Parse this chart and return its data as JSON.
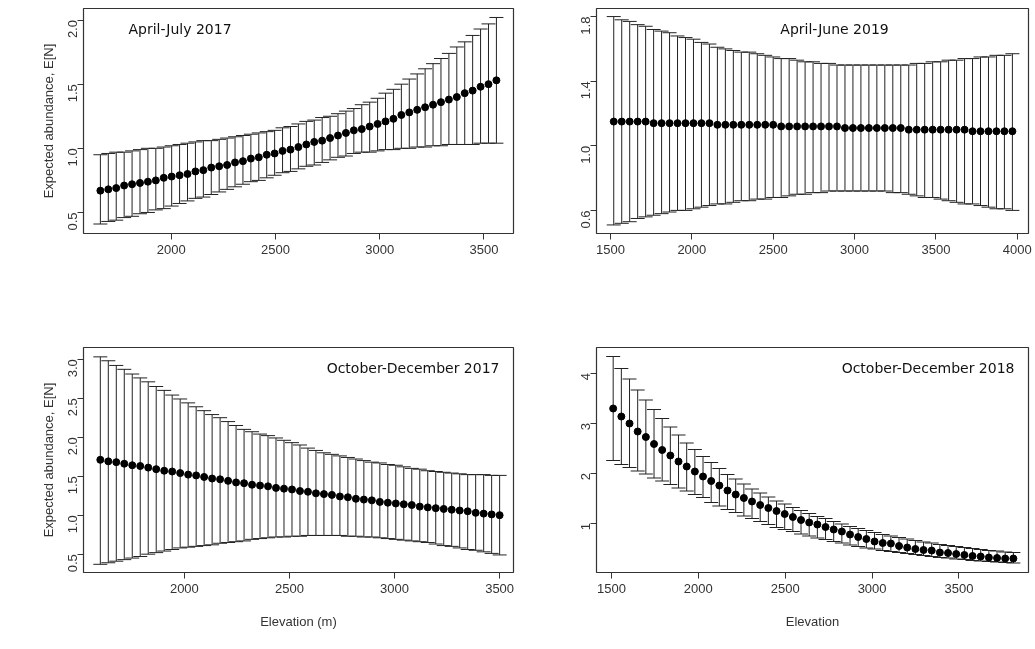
{
  "chart_data": [
    {
      "type": "scatter",
      "ylabel": "Expected abundance, E[N]",
      "annotations": [
        "April-July 2017"
      ],
      "marker": "circle",
      "grid": false,
      "color": "#000000",
      "tick_labels": "xy",
      "xlim": [
        1579,
        3642
      ],
      "ylim": [
        0.336,
        2.09
      ],
      "xticks": [
        2000,
        2500,
        3000,
        3500
      ],
      "yticks": [
        0.5,
        {
          "value": 1,
          "label": "1.0"
        },
        1.5,
        {
          "value": 2,
          "label": "2.0"
        }
      ],
      "x": [
        1660,
        1698,
        1736,
        1774,
        1812,
        1850,
        1888,
        1926,
        1964,
        2002,
        2040,
        2078,
        2116,
        2154,
        2192,
        2230,
        2268,
        2306,
        2344,
        2382,
        2420,
        2458,
        2496,
        2534,
        2572,
        2610,
        2648,
        2686,
        2724,
        2762,
        2800,
        2838,
        2876,
        2914,
        2952,
        2990,
        3028,
        3066,
        3104,
        3142,
        3180,
        3218,
        3256,
        3294,
        3332,
        3370,
        3408,
        3446,
        3484,
        3522,
        3560
      ],
      "values": [
        0.67,
        0.68,
        0.69,
        0.71,
        0.72,
        0.73,
        0.74,
        0.75,
        0.77,
        0.78,
        0.79,
        0.8,
        0.82,
        0.83,
        0.85,
        0.86,
        0.87,
        0.89,
        0.9,
        0.92,
        0.93,
        0.95,
        0.96,
        0.98,
        0.99,
        1.01,
        1.03,
        1.05,
        1.06,
        1.08,
        1.1,
        1.12,
        1.14,
        1.15,
        1.17,
        1.19,
        1.21,
        1.23,
        1.26,
        1.28,
        1.3,
        1.32,
        1.34,
        1.36,
        1.38,
        1.4,
        1.43,
        1.45,
        1.48,
        1.5,
        1.53
      ],
      "errors": [
        [
          0.41,
          0.95
        ],
        [
          0.43,
          0.96
        ],
        [
          0.44,
          0.97
        ],
        [
          0.46,
          0.97
        ],
        [
          0.47,
          0.98
        ],
        [
          0.49,
          0.99
        ],
        [
          0.5,
          1.0
        ],
        [
          0.52,
          1.0
        ],
        [
          0.53,
          1.01
        ],
        [
          0.55,
          1.02
        ],
        [
          0.57,
          1.03
        ],
        [
          0.59,
          1.04
        ],
        [
          0.61,
          1.05
        ],
        [
          0.62,
          1.06
        ],
        [
          0.64,
          1.06
        ],
        [
          0.66,
          1.07
        ],
        [
          0.68,
          1.08
        ],
        [
          0.7,
          1.09
        ],
        [
          0.72,
          1.1
        ],
        [
          0.74,
          1.11
        ],
        [
          0.75,
          1.12
        ],
        [
          0.77,
          1.13
        ],
        [
          0.79,
          1.14
        ],
        [
          0.81,
          1.16
        ],
        [
          0.82,
          1.17
        ],
        [
          0.84,
          1.19
        ],
        [
          0.86,
          1.21
        ],
        [
          0.87,
          1.22
        ],
        [
          0.89,
          1.24
        ],
        [
          0.91,
          1.25
        ],
        [
          0.93,
          1.27
        ],
        [
          0.94,
          1.29
        ],
        [
          0.96,
          1.31
        ],
        [
          0.97,
          1.34
        ],
        [
          0.97,
          1.36
        ],
        [
          0.98,
          1.39
        ],
        [
          0.99,
          1.43
        ],
        [
          0.99,
          1.46
        ],
        [
          1.0,
          1.5
        ],
        [
          1.0,
          1.54
        ],
        [
          1.01,
          1.58
        ],
        [
          1.01,
          1.62
        ],
        [
          1.02,
          1.66
        ],
        [
          1.02,
          1.7
        ],
        [
          1.03,
          1.74
        ],
        [
          1.03,
          1.79
        ],
        [
          1.03,
          1.83
        ],
        [
          1.03,
          1.88
        ],
        [
          1.04,
          1.93
        ],
        [
          1.04,
          1.97
        ],
        [
          1.04,
          2.02
        ]
      ]
    },
    {
      "type": "scatter",
      "annotations": [
        "April-June 2019"
      ],
      "marker": "circle",
      "grid": false,
      "color": "#000000",
      "xlim": [
        1414,
        4069
      ],
      "ylim": [
        0.457,
        1.85
      ],
      "xticks": [
        1500,
        2000,
        2500,
        3000,
        3500,
        4000
      ],
      "yticks": [
        0.6,
        {
          "value": 1,
          "label": "1.0"
        },
        1.4,
        1.8
      ],
      "x": [
        1520,
        1569,
        1618,
        1667,
        1716,
        1765,
        1814,
        1863,
        1912,
        1961,
        2010,
        2059,
        2108,
        2157,
        2206,
        2255,
        2304,
        2353,
        2402,
        2451,
        2500,
        2549,
        2598,
        2647,
        2696,
        2745,
        2794,
        2843,
        2892,
        2941,
        2990,
        3039,
        3088,
        3137,
        3186,
        3235,
        3284,
        3333,
        3382,
        3431,
        3480,
        3529,
        3578,
        3627,
        3676,
        3725,
        3774,
        3823,
        3872,
        3921,
        3970
      ],
      "values": [
        1.15,
        1.15,
        1.15,
        1.15,
        1.15,
        1.14,
        1.14,
        1.14,
        1.14,
        1.14,
        1.14,
        1.14,
        1.14,
        1.13,
        1.13,
        1.13,
        1.13,
        1.13,
        1.13,
        1.13,
        1.13,
        1.12,
        1.12,
        1.12,
        1.12,
        1.12,
        1.12,
        1.12,
        1.12,
        1.11,
        1.11,
        1.11,
        1.11,
        1.11,
        1.11,
        1.11,
        1.11,
        1.1,
        1.1,
        1.1,
        1.1,
        1.1,
        1.1,
        1.1,
        1.1,
        1.09,
        1.09,
        1.09,
        1.09,
        1.09,
        1.09
      ],
      "errors": [
        [
          0.51,
          1.8
        ],
        [
          0.52,
          1.78
        ],
        [
          0.53,
          1.77
        ],
        [
          0.55,
          1.75
        ],
        [
          0.56,
          1.74
        ],
        [
          0.57,
          1.72
        ],
        [
          0.58,
          1.71
        ],
        [
          0.59,
          1.7
        ],
        [
          0.6,
          1.68
        ],
        [
          0.6,
          1.67
        ],
        [
          0.61,
          1.66
        ],
        [
          0.62,
          1.64
        ],
        [
          0.63,
          1.63
        ],
        [
          0.64,
          1.61
        ],
        [
          0.64,
          1.6
        ],
        [
          0.65,
          1.59
        ],
        [
          0.66,
          1.58
        ],
        [
          0.66,
          1.58
        ],
        [
          0.67,
          1.57
        ],
        [
          0.67,
          1.56
        ],
        [
          0.68,
          1.55
        ],
        [
          0.68,
          1.54
        ],
        [
          0.69,
          1.54
        ],
        [
          0.7,
          1.53
        ],
        [
          0.7,
          1.52
        ],
        [
          0.71,
          1.52
        ],
        [
          0.71,
          1.51
        ],
        [
          0.72,
          1.51
        ],
        [
          0.72,
          1.5
        ],
        [
          0.72,
          1.5
        ],
        [
          0.72,
          1.5
        ],
        [
          0.72,
          1.5
        ],
        [
          0.72,
          1.5
        ],
        [
          0.72,
          1.5
        ],
        [
          0.72,
          1.5
        ],
        [
          0.71,
          1.5
        ],
        [
          0.71,
          1.5
        ],
        [
          0.7,
          1.5
        ],
        [
          0.69,
          1.51
        ],
        [
          0.68,
          1.51
        ],
        [
          0.68,
          1.52
        ],
        [
          0.67,
          1.52
        ],
        [
          0.66,
          1.53
        ],
        [
          0.65,
          1.53
        ],
        [
          0.64,
          1.54
        ],
        [
          0.64,
          1.54
        ],
        [
          0.63,
          1.55
        ],
        [
          0.62,
          1.55
        ],
        [
          0.61,
          1.56
        ],
        [
          0.61,
          1.56
        ],
        [
          0.6,
          1.57
        ]
      ]
    },
    {
      "type": "scatter",
      "ylabel": "Expected abundance, E[N]",
      "xlabel": "Elevation (m)",
      "annotations": [
        "October-December 2017"
      ],
      "marker": "circle",
      "grid": false,
      "color": "#000000",
      "xlim": [
        1520,
        3566
      ],
      "ylim": [
        0.265,
        3.15
      ],
      "xticks": [
        2000,
        2500,
        3000,
        3500
      ],
      "yticks": [
        0.5,
        {
          "value": 1,
          "label": "1.0"
        },
        1.5,
        {
          "value": 2,
          "label": "2.0"
        },
        2.5,
        {
          "value": 3,
          "label": "3.0"
        }
      ],
      "x": [
        1600,
        1638,
        1676,
        1714,
        1752,
        1790,
        1828,
        1866,
        1904,
        1942,
        1980,
        2018,
        2056,
        2094,
        2132,
        2170,
        2208,
        2246,
        2284,
        2322,
        2360,
        2398,
        2436,
        2474,
        2512,
        2550,
        2588,
        2626,
        2664,
        2702,
        2740,
        2778,
        2816,
        2854,
        2892,
        2930,
        2968,
        3006,
        3044,
        3082,
        3120,
        3158,
        3196,
        3234,
        3272,
        3310,
        3348,
        3386,
        3424,
        3462,
        3500
      ],
      "values": [
        1.71,
        1.69,
        1.68,
        1.66,
        1.64,
        1.63,
        1.61,
        1.59,
        1.57,
        1.56,
        1.54,
        1.52,
        1.51,
        1.49,
        1.47,
        1.46,
        1.44,
        1.42,
        1.41,
        1.39,
        1.38,
        1.37,
        1.35,
        1.34,
        1.33,
        1.31,
        1.3,
        1.28,
        1.27,
        1.26,
        1.24,
        1.23,
        1.21,
        1.2,
        1.19,
        1.17,
        1.16,
        1.15,
        1.14,
        1.13,
        1.11,
        1.1,
        1.09,
        1.08,
        1.07,
        1.06,
        1.05,
        1.03,
        1.02,
        1.01,
        1.0
      ],
      "errors": [
        [
          0.37,
          3.03
        ],
        [
          0.39,
          2.98
        ],
        [
          0.41,
          2.92
        ],
        [
          0.43,
          2.87
        ],
        [
          0.45,
          2.81
        ],
        [
          0.47,
          2.76
        ],
        [
          0.5,
          2.71
        ],
        [
          0.52,
          2.65
        ],
        [
          0.54,
          2.6
        ],
        [
          0.56,
          2.54
        ],
        [
          0.58,
          2.49
        ],
        [
          0.59,
          2.44
        ],
        [
          0.6,
          2.39
        ],
        [
          0.61,
          2.34
        ],
        [
          0.62,
          2.29
        ],
        [
          0.64,
          2.25
        ],
        [
          0.65,
          2.2
        ],
        [
          0.66,
          2.15
        ],
        [
          0.67,
          2.1
        ],
        [
          0.69,
          2.07
        ],
        [
          0.7,
          2.04
        ],
        [
          0.71,
          2.02
        ],
        [
          0.72,
          1.99
        ],
        [
          0.72,
          1.96
        ],
        [
          0.73,
          1.93
        ],
        [
          0.73,
          1.9
        ],
        [
          0.74,
          1.86
        ],
        [
          0.74,
          1.83
        ],
        [
          0.74,
          1.8
        ],
        [
          0.74,
          1.78
        ],
        [
          0.74,
          1.76
        ],
        [
          0.73,
          1.74
        ],
        [
          0.73,
          1.72
        ],
        [
          0.72,
          1.7
        ],
        [
          0.72,
          1.68
        ],
        [
          0.71,
          1.67
        ],
        [
          0.7,
          1.65
        ],
        [
          0.69,
          1.64
        ],
        [
          0.68,
          1.62
        ],
        [
          0.67,
          1.6
        ],
        [
          0.66,
          1.59
        ],
        [
          0.65,
          1.57
        ],
        [
          0.63,
          1.56
        ],
        [
          0.61,
          1.55
        ],
        [
          0.6,
          1.54
        ],
        [
          0.58,
          1.53
        ],
        [
          0.56,
          1.52
        ],
        [
          0.55,
          1.52
        ],
        [
          0.53,
          1.52
        ],
        [
          0.51,
          1.51
        ],
        [
          0.49,
          1.51
        ]
      ]
    },
    {
      "type": "scatter",
      "xlabel": "Elevation",
      "annotations": [
        "October-December 2018"
      ],
      "marker": "circle",
      "grid": false,
      "color": "#000000",
      "xlim": [
        1414,
        3900
      ],
      "ylim": [
        0.01,
        4.51
      ],
      "xticks": [
        1500,
        2000,
        2500,
        3000,
        3500
      ],
      "yticks": [
        1,
        2,
        3,
        4
      ],
      "x": [
        1510,
        1557,
        1604,
        1651,
        1698,
        1745,
        1792,
        1839,
        1886,
        1933,
        1980,
        2027,
        2074,
        2121,
        2168,
        2215,
        2262,
        2309,
        2356,
        2403,
        2450,
        2497,
        2544,
        2591,
        2638,
        2685,
        2732,
        2779,
        2826,
        2873,
        2920,
        2967,
        3014,
        3061,
        3108,
        3155,
        3202,
        3249,
        3296,
        3343,
        3390,
        3437,
        3484,
        3531,
        3578,
        3625,
        3672,
        3719,
        3766,
        3813
      ],
      "values": [
        3.29,
        3.13,
        2.99,
        2.83,
        2.72,
        2.58,
        2.46,
        2.35,
        2.23,
        2.13,
        2.03,
        1.93,
        1.84,
        1.75,
        1.65,
        1.57,
        1.5,
        1.43,
        1.36,
        1.3,
        1.24,
        1.18,
        1.12,
        1.06,
        1.01,
        0.97,
        0.92,
        0.87,
        0.83,
        0.77,
        0.72,
        0.68,
        0.63,
        0.6,
        0.59,
        0.54,
        0.51,
        0.48,
        0.46,
        0.45,
        0.41,
        0.4,
        0.38,
        0.36,
        0.34,
        0.33,
        0.31,
        0.3,
        0.29,
        0.29
      ],
      "errors": [
        [
          2.25,
          4.33
        ],
        [
          2.17,
          4.09
        ],
        [
          2.11,
          3.88
        ],
        [
          2.04,
          3.66
        ],
        [
          1.98,
          3.46
        ],
        [
          1.9,
          3.27
        ],
        [
          1.84,
          3.09
        ],
        [
          1.77,
          2.92
        ],
        [
          1.7,
          2.76
        ],
        [
          1.64,
          2.6
        ],
        [
          1.57,
          2.47
        ],
        [
          1.51,
          2.33
        ],
        [
          1.41,
          2.21
        ],
        [
          1.34,
          2.09
        ],
        [
          1.27,
          1.97
        ],
        [
          1.21,
          1.88
        ],
        [
          1.14,
          1.78
        ],
        [
          1.09,
          1.68
        ],
        [
          1.03,
          1.6
        ],
        [
          0.97,
          1.52
        ],
        [
          0.91,
          1.44
        ],
        [
          0.87,
          1.38
        ],
        [
          0.83,
          1.31
        ],
        [
          0.78,
          1.25
        ],
        [
          0.74,
          1.19
        ],
        [
          0.7,
          1.13
        ],
        [
          0.67,
          1.09
        ],
        [
          0.63,
          1.03
        ],
        [
          0.6,
          0.98
        ],
        [
          0.56,
          0.93
        ],
        [
          0.53,
          0.89
        ],
        [
          0.5,
          0.85
        ],
        [
          0.48,
          0.81
        ],
        [
          0.45,
          0.77
        ],
        [
          0.43,
          0.74
        ],
        [
          0.41,
          0.71
        ],
        [
          0.39,
          0.68
        ],
        [
          0.37,
          0.65
        ],
        [
          0.35,
          0.62
        ],
        [
          0.33,
          0.6
        ],
        [
          0.31,
          0.57
        ],
        [
          0.3,
          0.55
        ],
        [
          0.28,
          0.53
        ],
        [
          0.27,
          0.51
        ],
        [
          0.25,
          0.49
        ],
        [
          0.24,
          0.47
        ],
        [
          0.23,
          0.45
        ],
        [
          0.22,
          0.44
        ],
        [
          0.21,
          0.42
        ],
        [
          0.2,
          0.41
        ]
      ]
    }
  ]
}
